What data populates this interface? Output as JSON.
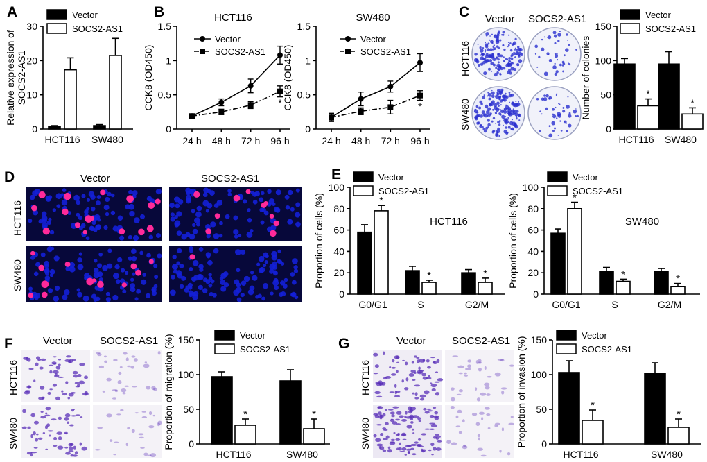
{
  "legend": {
    "vector": "Vector",
    "socs2": "SOCS2-AS1"
  },
  "colors": {
    "vector": "#000000",
    "socs2": "#ffffff",
    "nuclei": "#1420d8",
    "edu": "#ff2a9a",
    "crystal": "#5a2fb8"
  },
  "cells": [
    "HCT116",
    "SW480"
  ],
  "panels": {
    "A": "A",
    "B": "B",
    "C": "C",
    "D": "D",
    "E": "E",
    "F": "F",
    "G": "G"
  },
  "images": {
    "C": {
      "col1": "Vector",
      "col2": "SOCS2-AS1",
      "row1": "HCT116",
      "row2": "SW480"
    },
    "D": {
      "col1": "Vector",
      "col2": "SOCS2-AS1",
      "row1": "HCT116",
      "row2": "SW480"
    },
    "F": {
      "col1": "Vector",
      "col2": "SOCS2-AS1",
      "row1": "HCT116",
      "row2": "SW480"
    },
    "G": {
      "col1": "Vector",
      "col2": "SOCS2-AS1",
      "row1": "HCT116",
      "row2": "SW480"
    }
  },
  "chart_data": [
    {
      "id": "A",
      "type": "bar",
      "categories": [
        "HCT116",
        "SW480"
      ],
      "ylabel": [
        "Relative expression of",
        "SOCS2-AS1"
      ],
      "ylim": [
        0,
        30
      ],
      "yticks": [
        0,
        10,
        20,
        30
      ],
      "series": [
        {
          "name": "Vector",
          "values": [
            0.8,
            1.0
          ],
          "errors": [
            0.2,
            0.3
          ]
        },
        {
          "name": "SOCS2-AS1",
          "values": [
            17.3,
            21.5
          ],
          "errors": [
            3.5,
            5.0
          ]
        }
      ],
      "significance": [
        "",
        ""
      ]
    },
    {
      "id": "B1",
      "type": "line",
      "title": "HCT116",
      "x": [
        "24 h",
        "48 h",
        "72 h",
        "96 h"
      ],
      "ylabel": "CCK8 (OD450)",
      "ylim": [
        0,
        1.5
      ],
      "yticks": [
        0,
        0.5,
        1.0,
        1.5
      ],
      "series": [
        {
          "name": "Vector",
          "values": [
            0.19,
            0.39,
            0.63,
            1.08
          ],
          "errors": [
            0.03,
            0.05,
            0.1,
            0.13
          ]
        },
        {
          "name": "SOCS2-AS1",
          "values": [
            0.19,
            0.25,
            0.35,
            0.55
          ],
          "errors": [
            0.03,
            0.04,
            0.05,
            0.08
          ]
        }
      ],
      "significance": [
        "",
        "",
        "",
        "*"
      ]
    },
    {
      "id": "B2",
      "type": "line",
      "title": "SW480",
      "x": [
        "24 h",
        "48 h",
        "72 h",
        "96 h"
      ],
      "ylabel": "CCK8 (OD450)",
      "ylim": [
        0,
        1.5
      ],
      "yticks": [
        0,
        0.5,
        1.0,
        1.5
      ],
      "series": [
        {
          "name": "Vector",
          "values": [
            0.17,
            0.44,
            0.62,
            0.97
          ],
          "errors": [
            0.06,
            0.1,
            0.08,
            0.13
          ]
        },
        {
          "name": "SOCS2-AS1",
          "values": [
            0.17,
            0.26,
            0.32,
            0.49
          ],
          "errors": [
            0.05,
            0.05,
            0.1,
            0.07
          ]
        }
      ],
      "significance": [
        "",
        "",
        "",
        "*"
      ]
    },
    {
      "id": "C",
      "type": "bar",
      "categories": [
        "HCT116",
        "SW480"
      ],
      "ylabel": "Number of colonies",
      "ylim": [
        0,
        150
      ],
      "yticks": [
        0,
        50,
        100,
        150
      ],
      "series": [
        {
          "name": "Vector",
          "values": [
            95,
            95
          ],
          "errors": [
            8,
            18
          ]
        },
        {
          "name": "SOCS2-AS1",
          "values": [
            34,
            22
          ],
          "errors": [
            10,
            9
          ]
        }
      ],
      "significance": [
        "*",
        "*"
      ]
    },
    {
      "id": "E1",
      "type": "bar",
      "annotation": "HCT116",
      "categories": [
        "G0/G1",
        "S",
        "G2/M"
      ],
      "ylabel": "Proportion of cells (%)",
      "ylim": [
        0,
        100
      ],
      "yticks": [
        0,
        20,
        40,
        60,
        80,
        100
      ],
      "series": [
        {
          "name": "Vector",
          "values": [
            58,
            22,
            20
          ],
          "errors": [
            7,
            4,
            3
          ]
        },
        {
          "name": "SOCS2-AS1",
          "values": [
            78,
            11,
            11
          ],
          "errors": [
            5,
            2,
            4
          ]
        }
      ],
      "significance": [
        "*",
        "*",
        "*"
      ]
    },
    {
      "id": "E2",
      "type": "bar",
      "annotation": "SW480",
      "categories": [
        "G0/G1",
        "S",
        "G2/M"
      ],
      "ylabel": "Proportion of cells (%)",
      "ylim": [
        0,
        100
      ],
      "yticks": [
        0,
        20,
        40,
        60,
        80,
        100
      ],
      "series": [
        {
          "name": "Vector",
          "values": [
            57,
            21,
            21
          ],
          "errors": [
            4,
            4,
            3
          ]
        },
        {
          "name": "SOCS2-AS1",
          "values": [
            80,
            12,
            7
          ],
          "errors": [
            6,
            2,
            3
          ]
        }
      ],
      "significance": [
        "*",
        "*",
        "*"
      ]
    },
    {
      "id": "F",
      "type": "bar",
      "categories": [
        "HCT116",
        "SW480"
      ],
      "ylabel": "Proportion of migration (%)",
      "ylim": [
        0,
        150
      ],
      "yticks": [
        0,
        50,
        100,
        150
      ],
      "series": [
        {
          "name": "Vector",
          "values": [
            97,
            91
          ],
          "errors": [
            7,
            16
          ]
        },
        {
          "name": "SOCS2-AS1",
          "values": [
            27,
            22
          ],
          "errors": [
            9,
            14
          ]
        }
      ],
      "significance": [
        "*",
        "*"
      ]
    },
    {
      "id": "G",
      "type": "bar",
      "categories": [
        "HCT116",
        "SW480"
      ],
      "ylabel": "Proportion of invasion (%)",
      "ylim": [
        0,
        150
      ],
      "yticks": [
        0,
        50,
        100,
        150
      ],
      "series": [
        {
          "name": "Vector",
          "values": [
            103,
            102
          ],
          "errors": [
            17,
            15
          ]
        },
        {
          "name": "SOCS2-AS1",
          "values": [
            34,
            24
          ],
          "errors": [
            15,
            12
          ]
        }
      ],
      "significance": [
        "*",
        "*"
      ]
    }
  ]
}
